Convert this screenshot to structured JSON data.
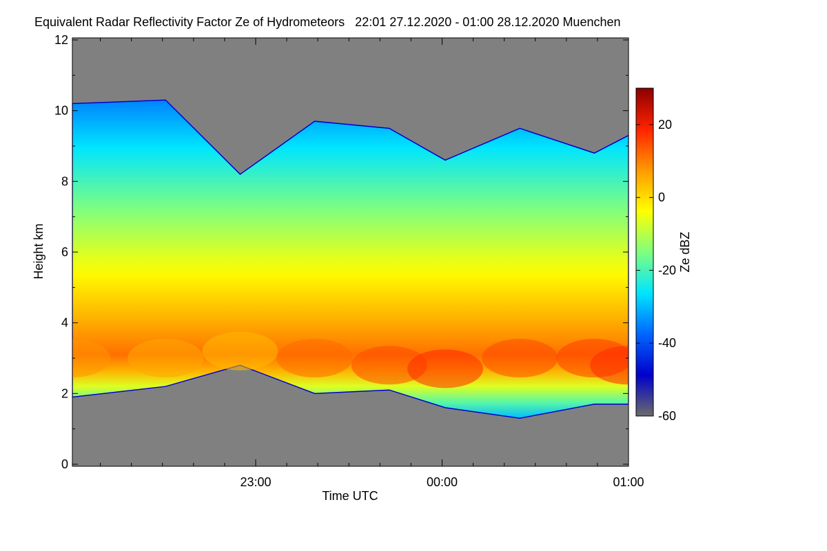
{
  "page_title": "Equivalent Radar Reflectivity Factor Ze of Hydrometeors   22:01 27.12.2020 - 01:00 28.12.2020 Muenchen",
  "chart_data": {
    "type": "heatmap",
    "title": "Equivalent Radar Reflectivity Factor Ze of Hydrometeors   22:01 27.12.2020 - 01:00 28.12.2020 Muenchen",
    "xlabel": "Time UTC",
    "ylabel": "Height km",
    "x_range": [
      "22:01",
      "01:00"
    ],
    "x_tick_labels": [
      "23:00",
      "00:00",
      "01:00"
    ],
    "ylim": [
      0,
      12
    ],
    "y_tick_labels": [
      "0",
      "2",
      "4",
      "6",
      "8",
      "10",
      "12"
    ],
    "colorbar": {
      "label": "Ze dBZ",
      "range": [
        -60,
        30
      ],
      "tick_labels": [
        "-60",
        "-40",
        "-20",
        "0",
        "20"
      ],
      "colors": [
        "#6b6b6b",
        "#0000cc",
        "#0066ff",
        "#00e5ff",
        "#7fff7f",
        "#ffff00",
        "#ff9900",
        "#ff2200",
        "#8b0000"
      ]
    },
    "no_echo_color": "#808080",
    "echo_profile": {
      "time_hours_after_start": [
        0.0,
        0.5,
        0.9,
        1.3,
        1.7,
        2.0,
        2.4,
        2.8,
        2.98
      ],
      "cloud_base_km": [
        1.9,
        2.2,
        2.8,
        2.0,
        2.1,
        1.6,
        1.3,
        1.7,
        1.7
      ],
      "cloud_top_km": [
        10.2,
        10.3,
        8.2,
        9.7,
        9.5,
        8.6,
        9.5,
        8.8,
        9.3
      ],
      "max_ze_dbz": [
        8,
        6,
        4,
        12,
        15,
        18,
        15,
        16,
        18
      ],
      "max_ze_height_km": [
        3.0,
        3.0,
        3.2,
        3.0,
        2.8,
        2.7,
        3.0,
        3.0,
        2.8
      ]
    }
  }
}
